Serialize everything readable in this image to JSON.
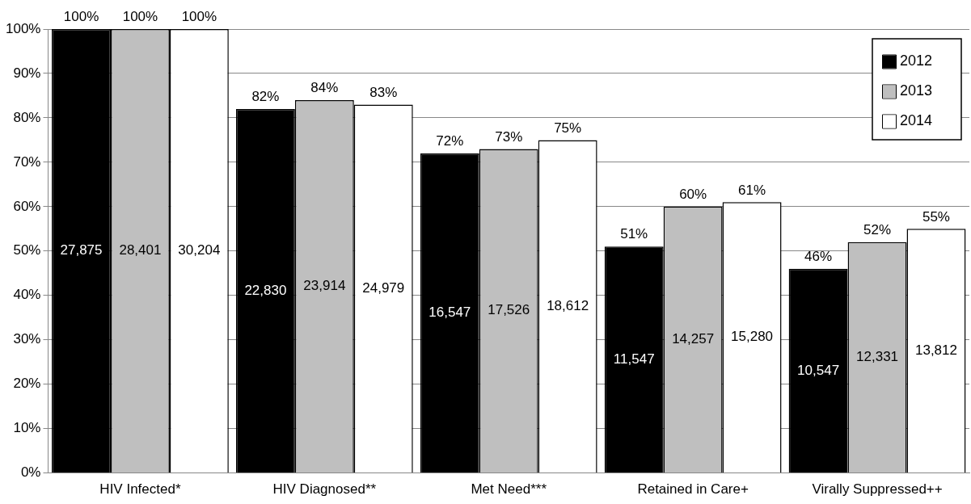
{
  "chart_data": {
    "type": "bar",
    "categories": [
      "HIV Infected*",
      "HIV Diagnosed**",
      "Met Need***",
      "Retained in Care+",
      "Virally Suppressed++"
    ],
    "series": [
      {
        "name": "2012",
        "color": "#000000",
        "values": [
          100,
          82,
          72,
          51,
          46
        ],
        "value_labels": [
          "100%",
          "82%",
          "72%",
          "51%",
          "46%"
        ]
      },
      {
        "name": "2013",
        "color": "#bfbfbf",
        "values": [
          100,
          84,
          73,
          60,
          52
        ],
        "value_labels": [
          "100%",
          "84%",
          "73%",
          "60%",
          "52%"
        ]
      },
      {
        "name": "2014",
        "color": "#ffffff",
        "values": [
          100,
          83,
          75,
          61,
          55
        ],
        "value_labels": [
          "100%",
          "83%",
          "75%",
          "61%",
          "55%"
        ]
      }
    ],
    "ylim": [
      0,
      100
    ],
    "yticks": [
      {
        "value": 0,
        "label": "0%"
      },
      {
        "value": 10,
        "label": "10%"
      },
      {
        "value": 20,
        "label": "20%"
      },
      {
        "value": 30,
        "label": "30%"
      },
      {
        "value": 40,
        "label": "40%"
      },
      {
        "value": 50,
        "label": "50%"
      },
      {
        "value": 60,
        "label": "60%"
      },
      {
        "value": 70,
        "label": "70%"
      },
      {
        "value": 80,
        "label": "80%"
      },
      {
        "value": 90,
        "label": "90%"
      },
      {
        "value": 100,
        "label": "100%"
      }
    ],
    "grid": "y",
    "legend": "top right",
    "annotations": [
      "27,875",
      "28,401",
      "30,204",
      "22,830",
      "23,914",
      "24,979",
      "16,547",
      "17,526",
      "18,612",
      "11,547",
      "14,257",
      "15,280",
      "10,547",
      "12,331",
      "13,812"
    ]
  }
}
